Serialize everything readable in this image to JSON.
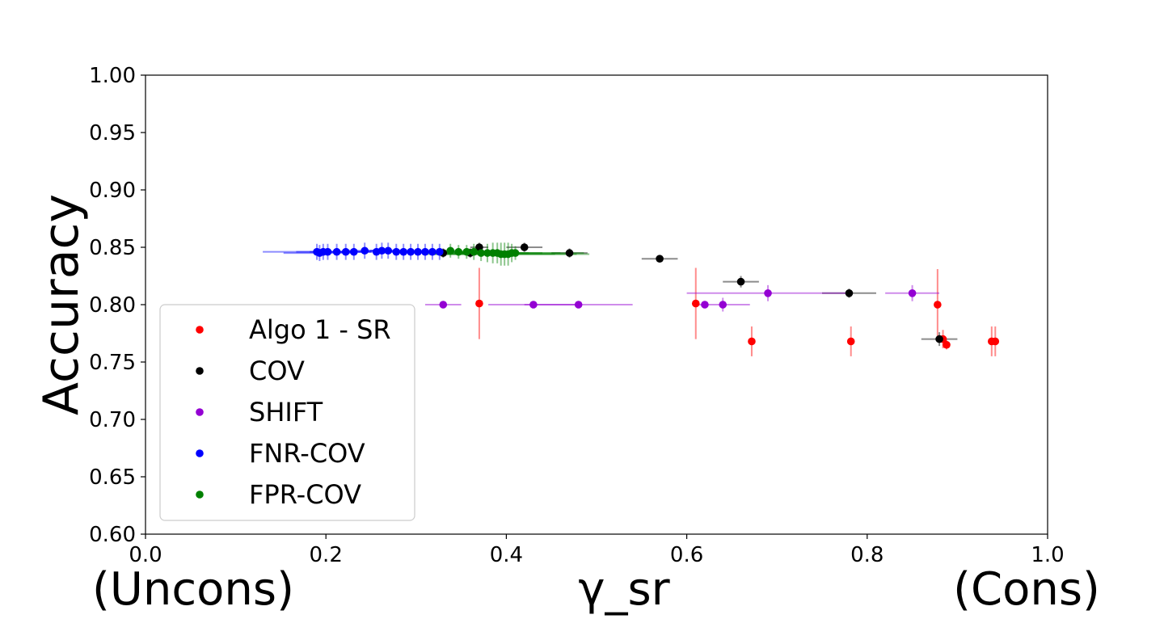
{
  "chart_data": {
    "type": "scatter",
    "xlabel": "γ_sr",
    "ylabel": "Accuracy",
    "xlim": [
      0.0,
      1.0
    ],
    "ylim": [
      0.6,
      1.0
    ],
    "xticks": [
      "0.0",
      "0.2",
      "0.4",
      "0.6",
      "0.8",
      "1.0"
    ],
    "yticks": [
      "0.60",
      "0.65",
      "0.70",
      "0.75",
      "0.80",
      "0.85",
      "0.90",
      "0.95",
      "1.00"
    ],
    "x_extreme_labels": {
      "left": "(Uncons)",
      "right": "(Cons)"
    },
    "legend_location": "lower-left",
    "series": [
      {
        "name": "Algo 1 - SR",
        "color": "#ff0000",
        "points": [
          {
            "x": 0.37,
            "y": 0.801,
            "xerr": 0.0,
            "yerr": 0.031
          },
          {
            "x": 0.61,
            "y": 0.801,
            "xerr": 0.0,
            "yerr": 0.031
          },
          {
            "x": 0.672,
            "y": 0.768,
            "xerr": 0.0,
            "yerr": 0.013
          },
          {
            "x": 0.782,
            "y": 0.768,
            "xerr": 0.0,
            "yerr": 0.013
          },
          {
            "x": 0.878,
            "y": 0.8,
            "xerr": 0.0,
            "yerr": 0.031
          },
          {
            "x": 0.884,
            "y": 0.77,
            "xerr": 0.0,
            "yerr": 0.008
          },
          {
            "x": 0.888,
            "y": 0.765,
            "xerr": 0.0,
            "yerr": 0.004
          },
          {
            "x": 0.938,
            "y": 0.768,
            "xerr": 0.0,
            "yerr": 0.013
          },
          {
            "x": 0.942,
            "y": 0.768,
            "xerr": 0.0,
            "yerr": 0.013
          }
        ]
      },
      {
        "name": "COV",
        "color": "#000000",
        "points": [
          {
            "x": 0.33,
            "y": 0.845,
            "xerr": 0.01,
            "yerr": 0.004
          },
          {
            "x": 0.36,
            "y": 0.845,
            "xerr": 0.01,
            "yerr": 0.004
          },
          {
            "x": 0.37,
            "y": 0.85,
            "xerr": 0.01,
            "yerr": 0.004
          },
          {
            "x": 0.42,
            "y": 0.85,
            "xerr": 0.02,
            "yerr": 0.004
          },
          {
            "x": 0.47,
            "y": 0.845,
            "xerr": 0.02,
            "yerr": 0.004
          },
          {
            "x": 0.57,
            "y": 0.84,
            "xerr": 0.02,
            "yerr": 0.003
          },
          {
            "x": 0.66,
            "y": 0.82,
            "xerr": 0.02,
            "yerr": 0.005
          },
          {
            "x": 0.78,
            "y": 0.81,
            "xerr": 0.03,
            "yerr": 0.004
          },
          {
            "x": 0.88,
            "y": 0.77,
            "xerr": 0.02,
            "yerr": 0.006
          }
        ]
      },
      {
        "name": "SHIFT",
        "color": "#9400d3",
        "points": [
          {
            "x": 0.33,
            "y": 0.8,
            "xerr": 0.02,
            "yerr": 0.0
          },
          {
            "x": 0.43,
            "y": 0.8,
            "xerr": 0.05,
            "yerr": 0.0
          },
          {
            "x": 0.48,
            "y": 0.8,
            "xerr": 0.06,
            "yerr": 0.0
          },
          {
            "x": 0.62,
            "y": 0.8,
            "xerr": 0.0,
            "yerr": 0.0
          },
          {
            "x": 0.64,
            "y": 0.8,
            "xerr": 0.03,
            "yerr": 0.006
          },
          {
            "x": 0.69,
            "y": 0.81,
            "xerr": 0.09,
            "yerr": 0.007
          },
          {
            "x": 0.85,
            "y": 0.81,
            "xerr": 0.03,
            "yerr": 0.007
          }
        ]
      },
      {
        "name": "FNR-COV",
        "color": "#0000ff",
        "points": [
          {
            "x": 0.19,
            "y": 0.846,
            "xerr": 0.06,
            "yerr": 0.007
          },
          {
            "x": 0.193,
            "y": 0.845,
            "xerr": 0.04,
            "yerr": 0.007
          },
          {
            "x": 0.197,
            "y": 0.846,
            "xerr": 0.03,
            "yerr": 0.007
          },
          {
            "x": 0.202,
            "y": 0.846,
            "xerr": 0.02,
            "yerr": 0.007
          },
          {
            "x": 0.212,
            "y": 0.846,
            "xerr": 0.02,
            "yerr": 0.007
          },
          {
            "x": 0.222,
            "y": 0.846,
            "xerr": 0.02,
            "yerr": 0.007
          },
          {
            "x": 0.231,
            "y": 0.846,
            "xerr": 0.02,
            "yerr": 0.007
          },
          {
            "x": 0.243,
            "y": 0.847,
            "xerr": 0.02,
            "yerr": 0.007
          },
          {
            "x": 0.256,
            "y": 0.846,
            "xerr": 0.02,
            "yerr": 0.007
          },
          {
            "x": 0.262,
            "y": 0.847,
            "xerr": 0.02,
            "yerr": 0.007
          },
          {
            "x": 0.269,
            "y": 0.847,
            "xerr": 0.02,
            "yerr": 0.007
          },
          {
            "x": 0.278,
            "y": 0.846,
            "xerr": 0.02,
            "yerr": 0.007
          },
          {
            "x": 0.286,
            "y": 0.846,
            "xerr": 0.02,
            "yerr": 0.007
          },
          {
            "x": 0.294,
            "y": 0.846,
            "xerr": 0.02,
            "yerr": 0.007
          },
          {
            "x": 0.302,
            "y": 0.846,
            "xerr": 0.02,
            "yerr": 0.007
          },
          {
            "x": 0.31,
            "y": 0.846,
            "xerr": 0.02,
            "yerr": 0.007
          },
          {
            "x": 0.318,
            "y": 0.846,
            "xerr": 0.02,
            "yerr": 0.007
          },
          {
            "x": 0.326,
            "y": 0.846,
            "xerr": 0.02,
            "yerr": 0.007
          }
        ]
      },
      {
        "name": "FPR-COV",
        "color": "#008000",
        "points": [
          {
            "x": 0.338,
            "y": 0.847,
            "xerr": 0.01,
            "yerr": 0.006
          },
          {
            "x": 0.347,
            "y": 0.846,
            "xerr": 0.02,
            "yerr": 0.006
          },
          {
            "x": 0.356,
            "y": 0.846,
            "xerr": 0.02,
            "yerr": 0.006
          },
          {
            "x": 0.364,
            "y": 0.846,
            "xerr": 0.02,
            "yerr": 0.007
          },
          {
            "x": 0.372,
            "y": 0.845,
            "xerr": 0.03,
            "yerr": 0.007
          },
          {
            "x": 0.379,
            "y": 0.845,
            "xerr": 0.03,
            "yerr": 0.008
          },
          {
            "x": 0.385,
            "y": 0.845,
            "xerr": 0.04,
            "yerr": 0.009
          },
          {
            "x": 0.39,
            "y": 0.845,
            "xerr": 0.05,
            "yerr": 0.009
          },
          {
            "x": 0.394,
            "y": 0.844,
            "xerr": 0.06,
            "yerr": 0.01
          },
          {
            "x": 0.398,
            "y": 0.844,
            "xerr": 0.08,
            "yerr": 0.01
          },
          {
            "x": 0.402,
            "y": 0.844,
            "xerr": 0.09,
            "yerr": 0.01
          },
          {
            "x": 0.406,
            "y": 0.845,
            "xerr": 0.08,
            "yerr": 0.008
          },
          {
            "x": 0.41,
            "y": 0.845,
            "xerr": 0.05,
            "yerr": 0.006
          }
        ]
      }
    ]
  }
}
